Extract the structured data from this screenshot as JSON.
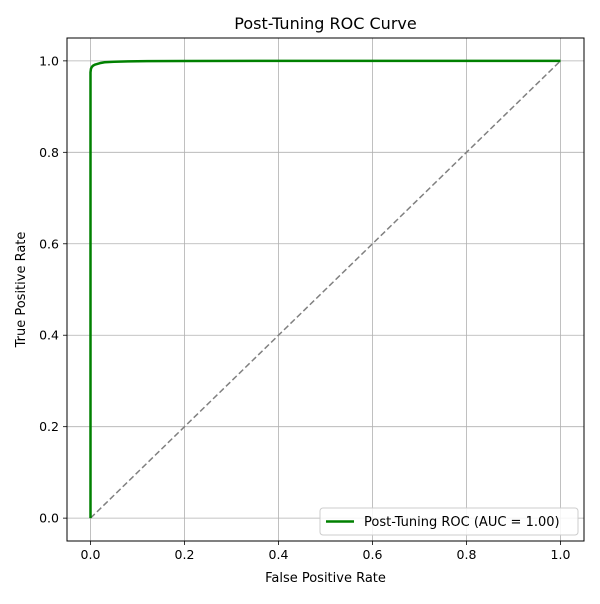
{
  "chart_data": {
    "type": "line",
    "title": "Post-Tuning ROC Curve",
    "xlabel": "False Positive Rate",
    "ylabel": "True Positive Rate",
    "xlim": [
      -0.05,
      1.05
    ],
    "ylim": [
      -0.05,
      1.05
    ],
    "xticks": [
      "0.0",
      "0.2",
      "0.4",
      "0.6",
      "0.8",
      "1.0"
    ],
    "yticks": [
      "0.0",
      "0.2",
      "0.4",
      "0.6",
      "0.8",
      "1.0"
    ],
    "grid": true,
    "legend_position": "lower-right",
    "series": [
      {
        "name": "Post-Tuning ROC (AUC = 1.00)",
        "color": "#008000",
        "style": "solid",
        "x": [
          0.0,
          0.0,
          0.0,
          0.0,
          0.001,
          0.003,
          0.006,
          0.01,
          0.02,
          0.03,
          0.05,
          0.08,
          0.12,
          0.2,
          0.4,
          0.6,
          0.8,
          1.0
        ],
        "y": [
          0.0,
          0.5,
          0.9,
          0.975,
          0.983,
          0.987,
          0.99,
          0.992,
          0.995,
          0.997,
          0.998,
          0.999,
          0.9995,
          0.9998,
          1.0,
          1.0,
          1.0,
          1.0
        ]
      },
      {
        "name": "",
        "color": "#808080",
        "style": "dashed",
        "x": [
          0.0,
          1.0
        ],
        "y": [
          0.0,
          1.0
        ]
      }
    ]
  }
}
